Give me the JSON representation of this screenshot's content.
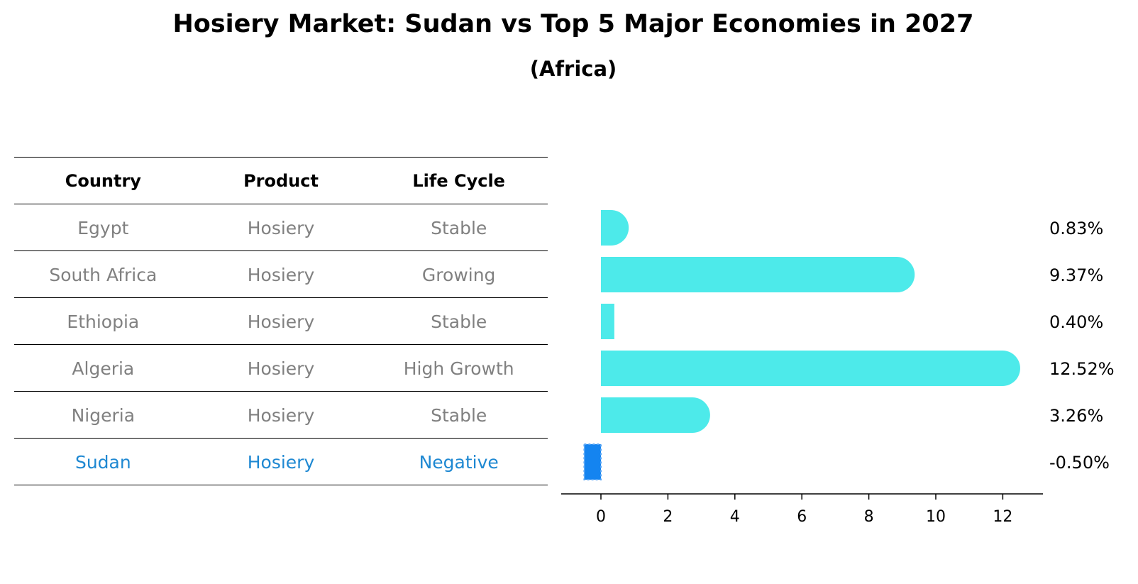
{
  "chart_data": {
    "type": "bar",
    "orientation": "horizontal",
    "title": "Hosiery Market: Sudan vs Top 5 Major Economies in 2027",
    "subtitle": "(Africa)",
    "table": {
      "headers": [
        "Country",
        "Product",
        "Life Cycle"
      ],
      "rows": [
        {
          "country": "Egypt",
          "product": "Hosiery",
          "life_cycle": "Stable"
        },
        {
          "country": "South Africa",
          "product": "Hosiery",
          "life_cycle": "Growing"
        },
        {
          "country": "Ethiopia",
          "product": "Hosiery",
          "life_cycle": "Stable"
        },
        {
          "country": "Algeria",
          "product": "Hosiery",
          "life_cycle": "High Growth"
        },
        {
          "country": "Nigeria",
          "product": "Hosiery",
          "life_cycle": "Stable"
        },
        {
          "country": "Sudan",
          "product": "Hosiery",
          "life_cycle": "Negative"
        }
      ]
    },
    "categories": [
      "Egypt",
      "South Africa",
      "Ethiopia",
      "Algeria",
      "Nigeria",
      "Sudan"
    ],
    "values": [
      0.83,
      9.37,
      0.4,
      12.52,
      3.26,
      -0.5
    ],
    "value_labels": [
      "0.83%",
      "9.37%",
      "0.40%",
      "12.52%",
      "3.26%",
      "-0.50%"
    ],
    "highlight": "Sudan",
    "xlim": [
      -1.2,
      13.2
    ],
    "xticks": [
      0,
      2,
      4,
      6,
      8,
      10,
      12
    ],
    "xlabel": "",
    "ylabel": "",
    "colors": {
      "bar": "#4deaea",
      "highlight_bar": "#1484f0",
      "highlight_text": "#1e88d2",
      "table_text": "#808080"
    }
  }
}
